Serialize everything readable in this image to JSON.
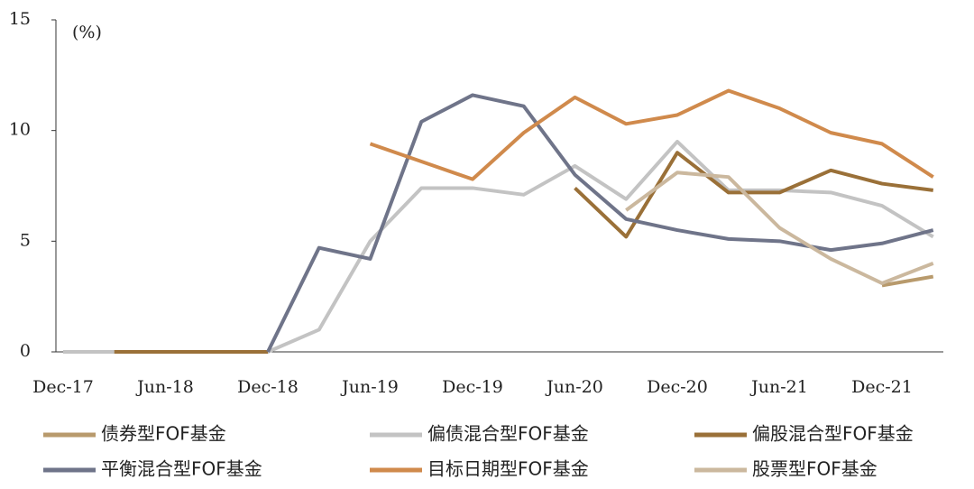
{
  "chart_data": {
    "type": "line",
    "unit_label": "(%)",
    "categories": [
      "Dec-17",
      null,
      "Jun-18",
      null,
      "Dec-18",
      null,
      "Jun-19",
      null,
      "Dec-19",
      null,
      "Jun-20",
      null,
      "Dec-20",
      null,
      "Jun-21",
      null,
      "Dec-21",
      null
    ],
    "ylim": [
      0,
      15
    ],
    "yticks": [
      0,
      5,
      10,
      15
    ],
    "grid": false,
    "series": [
      {
        "name": "债券型FOF基金",
        "color": "#b89a6c",
        "values": [
          null,
          null,
          null,
          null,
          null,
          null,
          null,
          null,
          null,
          null,
          null,
          null,
          null,
          null,
          null,
          null,
          3.0,
          3.4
        ]
      },
      {
        "name": "偏债混合型FOF基金",
        "color": "#c3c3c3",
        "values": [
          0,
          0,
          0,
          0,
          0,
          1.0,
          5.0,
          7.4,
          7.4,
          7.1,
          8.4,
          6.9,
          9.5,
          7.3,
          7.3,
          7.2,
          6.6,
          5.2
        ]
      },
      {
        "name": "偏股混合型FOF基金",
        "color": "#9a7038",
        "values": [
          null,
          0,
          0,
          0,
          0,
          null,
          null,
          null,
          null,
          null,
          7.4,
          5.2,
          9.0,
          7.2,
          7.2,
          8.2,
          7.6,
          7.3
        ]
      },
      {
        "name": "平衡混合型FOF基金",
        "color": "#6f7489",
        "values": [
          null,
          null,
          null,
          null,
          0,
          4.7,
          4.2,
          10.4,
          11.6,
          11.1,
          8.0,
          6.0,
          5.5,
          5.1,
          5.0,
          4.6,
          4.9,
          5.5
        ]
      },
      {
        "name": "目标日期型FOF基金",
        "color": "#d08a4c",
        "values": [
          null,
          null,
          null,
          null,
          null,
          null,
          9.4,
          8.6,
          7.8,
          9.9,
          11.5,
          10.3,
          10.7,
          11.8,
          11.0,
          9.9,
          9.4,
          7.9
        ]
      },
      {
        "name": "股票型FOF基金",
        "color": "#cbb89e",
        "values": [
          null,
          null,
          null,
          null,
          null,
          null,
          null,
          null,
          null,
          null,
          null,
          6.4,
          8.1,
          7.9,
          5.6,
          4.2,
          3.1,
          4.0
        ]
      }
    ]
  }
}
